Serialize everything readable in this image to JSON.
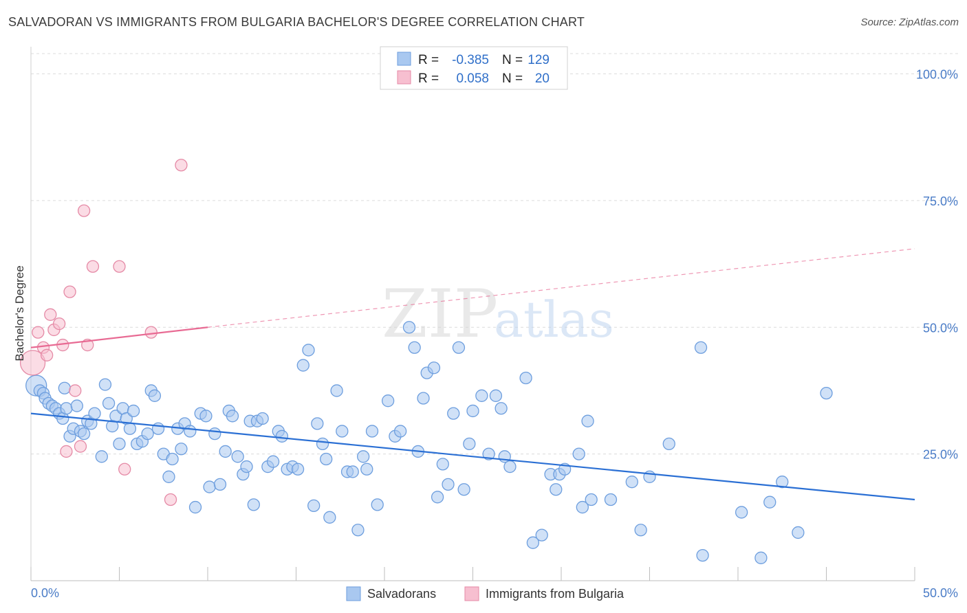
{
  "title": "SALVADORAN VS IMMIGRANTS FROM BULGARIA BACHELOR'S DEGREE CORRELATION CHART",
  "source": "Source: ZipAtlas.com",
  "watermark": {
    "zip": "ZIP",
    "atlas": "atlas"
  },
  "legend": {
    "rows": [
      {
        "r_label": "R =",
        "r_value": "-0.385",
        "n_label": "N =",
        "n_value": "129",
        "color": "#a9c8f0",
        "stroke": "#6d9ede"
      },
      {
        "r_label": "R =",
        "r_value": "0.058",
        "n_label": "N =",
        "n_value": "20",
        "color": "#f7bfd0",
        "stroke": "#e58aa6"
      }
    ]
  },
  "bottom_legend": [
    "Salvadorans",
    "Immigrants from Bulgaria"
  ],
  "chart_data": {
    "type": "scatter",
    "title": "SALVADORAN VS IMMIGRANTS FROM BULGARIA BACHELOR'S DEGREE CORRELATION CHART",
    "xlabel": "",
    "ylabel": "Bachelor's Degree",
    "xlim": [
      0,
      50
    ],
    "ylim": [
      0,
      100
    ],
    "x_tick_labels": [
      "0.0%",
      "50.0%"
    ],
    "y_tick_labels": [
      "100.0%",
      "75.0%",
      "50.0%",
      "25.0%"
    ],
    "y_ticks": [
      100,
      75,
      50,
      25
    ],
    "grid": true,
    "legend_position": "top-center",
    "series": [
      {
        "name": "Salvadorans",
        "color": "#a9c8f0",
        "stroke": "#6d9ede",
        "trend": {
          "x0": 0,
          "y0": 33,
          "x1": 50,
          "y1": 16,
          "color": "#2a6fd4"
        },
        "points": [
          [
            0.3,
            38.5
          ],
          [
            0.5,
            37.5
          ],
          [
            0.7,
            37
          ],
          [
            0.8,
            36
          ],
          [
            1.0,
            35
          ],
          [
            1.2,
            34.5
          ],
          [
            1.4,
            34
          ],
          [
            1.6,
            33
          ],
          [
            1.8,
            32
          ],
          [
            1.9,
            38
          ],
          [
            2.0,
            34
          ],
          [
            2.2,
            28.5
          ],
          [
            2.4,
            30
          ],
          [
            2.6,
            34.5
          ],
          [
            2.8,
            29.5
          ],
          [
            3.0,
            29
          ],
          [
            3.2,
            31.5
          ],
          [
            3.4,
            31
          ],
          [
            3.6,
            33
          ],
          [
            4.0,
            24.5
          ],
          [
            4.2,
            38.7
          ],
          [
            4.4,
            35
          ],
          [
            4.6,
            30.5
          ],
          [
            4.8,
            32.5
          ],
          [
            5.0,
            27
          ],
          [
            5.2,
            34
          ],
          [
            5.4,
            32
          ],
          [
            5.6,
            30
          ],
          [
            5.8,
            33.5
          ],
          [
            6.0,
            27
          ],
          [
            6.3,
            27.5
          ],
          [
            6.6,
            29
          ],
          [
            6.8,
            37.5
          ],
          [
            7.0,
            36.5
          ],
          [
            7.2,
            30
          ],
          [
            7.5,
            25
          ],
          [
            7.8,
            20.5
          ],
          [
            8.0,
            24
          ],
          [
            8.3,
            30
          ],
          [
            8.5,
            26
          ],
          [
            8.7,
            31
          ],
          [
            9.0,
            29.5
          ],
          [
            9.3,
            14.5
          ],
          [
            9.6,
            33
          ],
          [
            9.9,
            32.5
          ],
          [
            10.1,
            18.5
          ],
          [
            10.4,
            29
          ],
          [
            10.7,
            19
          ],
          [
            11.0,
            25.5
          ],
          [
            11.2,
            33.5
          ],
          [
            11.4,
            32.5
          ],
          [
            11.7,
            24.5
          ],
          [
            12.0,
            21
          ],
          [
            12.2,
            22.5
          ],
          [
            12.4,
            31.5
          ],
          [
            12.6,
            15
          ],
          [
            12.8,
            31.5
          ],
          [
            13.1,
            32
          ],
          [
            13.4,
            22.5
          ],
          [
            13.7,
            23.5
          ],
          [
            14.0,
            29.5
          ],
          [
            14.2,
            28.5
          ],
          [
            14.5,
            22
          ],
          [
            14.8,
            22.5
          ],
          [
            15.1,
            22
          ],
          [
            15.4,
            42.5
          ],
          [
            15.7,
            45.5
          ],
          [
            16.0,
            14.8
          ],
          [
            16.2,
            31
          ],
          [
            16.5,
            27
          ],
          [
            16.7,
            24
          ],
          [
            16.9,
            12.5
          ],
          [
            17.3,
            37.5
          ],
          [
            17.6,
            29.5
          ],
          [
            17.9,
            21.5
          ],
          [
            18.2,
            21.5
          ],
          [
            18.5,
            10
          ],
          [
            18.8,
            24.5
          ],
          [
            19.0,
            22
          ],
          [
            19.3,
            29.5
          ],
          [
            19.6,
            15
          ],
          [
            20.2,
            35.5
          ],
          [
            20.6,
            28.5
          ],
          [
            20.9,
            29.5
          ],
          [
            21.4,
            50
          ],
          [
            21.7,
            46
          ],
          [
            21.9,
            25.5
          ],
          [
            22.2,
            36
          ],
          [
            22.4,
            41
          ],
          [
            22.8,
            42
          ],
          [
            23.0,
            16.5
          ],
          [
            23.3,
            23
          ],
          [
            23.6,
            19
          ],
          [
            23.9,
            33
          ],
          [
            24.2,
            46
          ],
          [
            24.5,
            18
          ],
          [
            24.8,
            27
          ],
          [
            25.0,
            33.5
          ],
          [
            25.5,
            36.5
          ],
          [
            25.9,
            25
          ],
          [
            26.3,
            36.5
          ],
          [
            26.6,
            34
          ],
          [
            26.8,
            24.5
          ],
          [
            27.1,
            22.5
          ],
          [
            28.0,
            40
          ],
          [
            28.4,
            7.5
          ],
          [
            28.9,
            9
          ],
          [
            29.4,
            21
          ],
          [
            29.7,
            18
          ],
          [
            29.9,
            21
          ],
          [
            30.2,
            22
          ],
          [
            31.0,
            25
          ],
          [
            31.2,
            14.5
          ],
          [
            31.5,
            31.5
          ],
          [
            31.7,
            16
          ],
          [
            32.8,
            16
          ],
          [
            34.0,
            19.5
          ],
          [
            34.5,
            10
          ],
          [
            35.0,
            20.5
          ],
          [
            36.1,
            27
          ],
          [
            37.9,
            46
          ],
          [
            38.0,
            5
          ],
          [
            40.2,
            13.5
          ],
          [
            41.3,
            4.5
          ],
          [
            41.8,
            15.5
          ],
          [
            42.5,
            19.5
          ],
          [
            43.4,
            9.5
          ],
          [
            45.0,
            37
          ]
        ]
      },
      {
        "name": "Immigrants from Bulgaria",
        "color": "#f7bfd0",
        "stroke": "#e58aa6",
        "trend": {
          "x0": 0,
          "y0": 46,
          "x1": 10,
          "y1": 50,
          "x2": 50,
          "y2": 65.5,
          "color": "#e86a93"
        },
        "points": [
          [
            0.1,
            43
          ],
          [
            0.4,
            49
          ],
          [
            0.7,
            46
          ],
          [
            0.9,
            44.5
          ],
          [
            1.1,
            52.5
          ],
          [
            1.3,
            49.5
          ],
          [
            1.6,
            50.7
          ],
          [
            1.8,
            46.5
          ],
          [
            2.0,
            25.5
          ],
          [
            2.2,
            57
          ],
          [
            2.5,
            37.5
          ],
          [
            2.8,
            26.5
          ],
          [
            3.0,
            73
          ],
          [
            3.2,
            46.5
          ],
          [
            3.5,
            62
          ],
          [
            5.0,
            62
          ],
          [
            5.3,
            22
          ],
          [
            6.8,
            49
          ],
          [
            7.9,
            16
          ],
          [
            8.5,
            82
          ]
        ]
      }
    ]
  }
}
